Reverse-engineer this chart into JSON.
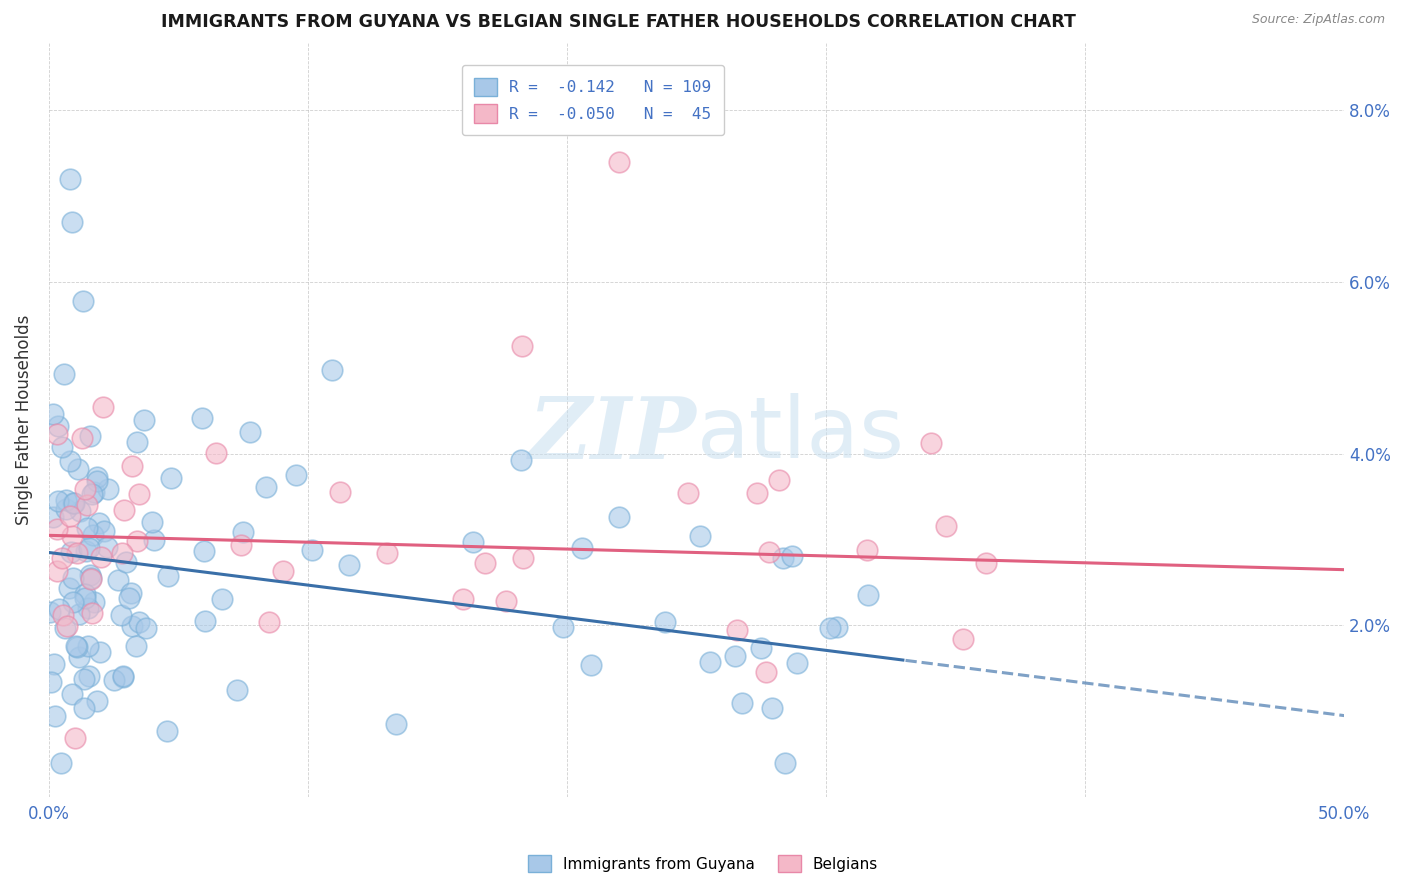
{
  "title": "IMMIGRANTS FROM GUYANA VS BELGIAN SINGLE FATHER HOUSEHOLDS CORRELATION CHART",
  "source": "Source: ZipAtlas.com",
  "ylabel": "Single Father Households",
  "legend1_label": "Immigrants from Guyana",
  "legend2_label": "Belgians",
  "legend_r1": "R =  -0.142   N = 109",
  "legend_r2": "R =  -0.050   N =  45",
  "blue_color": "#a8c8e8",
  "pink_color": "#f4b8c8",
  "blue_edge_color": "#7ab0d8",
  "pink_edge_color": "#e888a8",
  "blue_line_color": "#3a6fa8",
  "pink_line_color": "#e06080",
  "watermark_color": "#c8dff0",
  "x_min": 0.0,
  "x_max": 50.0,
  "y_min": 0.0,
  "y_max": 8.8,
  "blue_intercept": 2.85,
  "blue_slope": -0.038,
  "blue_solid_max": 33.0,
  "pink_intercept": 3.05,
  "pink_slope": -0.008
}
